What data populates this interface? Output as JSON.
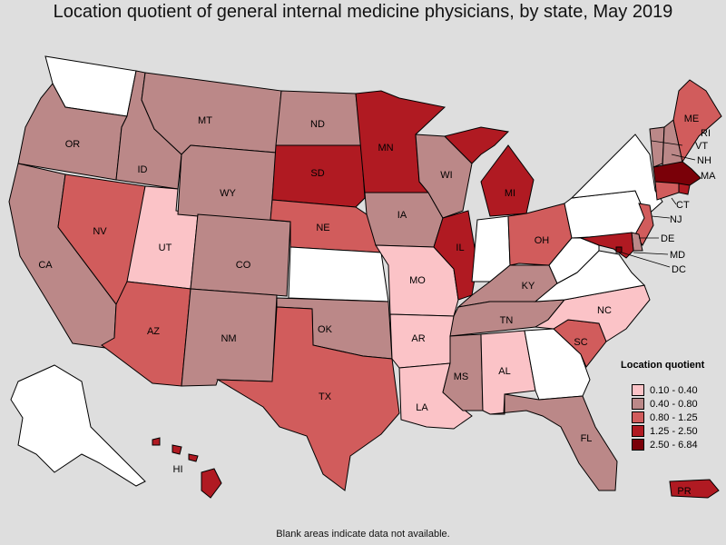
{
  "title": "Location quotient of general internal medicine physicians, by state, May 2019",
  "footnote": "Blank areas indicate data not available.",
  "legend": {
    "title": "Location quotient",
    "classes": [
      {
        "label": "0.10 - 0.40",
        "color": "#fbc3c7"
      },
      {
        "label": "0.40 - 0.80",
        "color": "#bb8888"
      },
      {
        "label": "0.80 - 1.25",
        "color": "#d15c5c"
      },
      {
        "label": "1.25 - 2.50",
        "color": "#b01a22"
      },
      {
        "label": "2.50 - 6.84",
        "color": "#7a0008"
      }
    ]
  },
  "no_data_color": "#ffffff",
  "states": [
    {
      "code": "WA",
      "class": null
    },
    {
      "code": "OR",
      "class": 1
    },
    {
      "code": "CA",
      "class": 1
    },
    {
      "code": "ID",
      "class": 1
    },
    {
      "code": "NV",
      "class": 2
    },
    {
      "code": "UT",
      "class": 0
    },
    {
      "code": "AZ",
      "class": 2
    },
    {
      "code": "MT",
      "class": 1
    },
    {
      "code": "WY",
      "class": 1
    },
    {
      "code": "CO",
      "class": 1
    },
    {
      "code": "NM",
      "class": 1
    },
    {
      "code": "ND",
      "class": 1
    },
    {
      "code": "SD",
      "class": 3
    },
    {
      "code": "NE",
      "class": 2
    },
    {
      "code": "KS",
      "class": null
    },
    {
      "code": "OK",
      "class": 1
    },
    {
      "code": "TX",
      "class": 2
    },
    {
      "code": "MN",
      "class": 3
    },
    {
      "code": "IA",
      "class": 1
    },
    {
      "code": "MO",
      "class": 0
    },
    {
      "code": "AR",
      "class": 0
    },
    {
      "code": "LA",
      "class": 0
    },
    {
      "code": "WI",
      "class": 1
    },
    {
      "code": "IL",
      "class": 3
    },
    {
      "code": "MI",
      "class": 3
    },
    {
      "code": "IN",
      "class": null
    },
    {
      "code": "OH",
      "class": 2
    },
    {
      "code": "KY",
      "class": 1
    },
    {
      "code": "TN",
      "class": 1
    },
    {
      "code": "MS",
      "class": 1
    },
    {
      "code": "AL",
      "class": 0
    },
    {
      "code": "GA",
      "class": null
    },
    {
      "code": "FL",
      "class": 1
    },
    {
      "code": "SC",
      "class": 2
    },
    {
      "code": "NC",
      "class": 0
    },
    {
      "code": "VA",
      "class": null
    },
    {
      "code": "WV",
      "class": null
    },
    {
      "code": "PA",
      "class": null
    },
    {
      "code": "NY",
      "class": null
    },
    {
      "code": "VT",
      "class": 1
    },
    {
      "code": "NH",
      "class": 1
    },
    {
      "code": "ME",
      "class": 2
    },
    {
      "code": "MA",
      "class": 4
    },
    {
      "code": "RI",
      "class": 3
    },
    {
      "code": "CT",
      "class": 2
    },
    {
      "code": "NJ",
      "class": 2
    },
    {
      "code": "DE",
      "class": 1
    },
    {
      "code": "MD",
      "class": 3
    },
    {
      "code": "DC",
      "class": 4
    },
    {
      "code": "AK",
      "class": null
    },
    {
      "code": "HI",
      "class": 3
    },
    {
      "code": "PR",
      "class": 3
    }
  ]
}
